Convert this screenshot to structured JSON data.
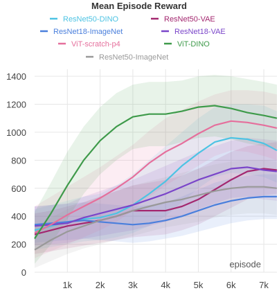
{
  "chart_data": {
    "type": "line",
    "title": "Mean Episode Reward",
    "xlabel": "episode",
    "ylabel": "",
    "xlim": [
      0,
      7400
    ],
    "ylim": [
      0,
      1450
    ],
    "x_ticks": [
      1000,
      2000,
      3000,
      4000,
      5000,
      6000,
      7000
    ],
    "x_tick_labels": [
      "1k",
      "2k",
      "3k",
      "4k",
      "5k",
      "6k",
      "7k"
    ],
    "y_ticks": [
      0,
      200,
      400,
      600,
      800,
      1000,
      1200,
      1400
    ],
    "y_tick_labels": [
      "0",
      "200",
      "400",
      "600",
      "800",
      "1000",
      "1200",
      "1400"
    ],
    "grid": true,
    "legend_position": "top",
    "x": [
      0,
      500,
      1000,
      1500,
      2000,
      2500,
      3000,
      3500,
      4000,
      4500,
      5000,
      5500,
      6000,
      6500,
      7000,
      7400
    ],
    "series": [
      {
        "name": "ResNet50-DINO",
        "color": "#4dc3e3",
        "values": [
          300,
          330,
          360,
          380,
          390,
          420,
          480,
          560,
          650,
          760,
          850,
          930,
          960,
          950,
          920,
          870
        ],
        "upper": [
          450,
          480,
          510,
          540,
          560,
          620,
          700,
          800,
          900,
          1000,
          1100,
          1180,
          1200,
          1200,
          1190,
          1150
        ],
        "lower": [
          160,
          180,
          200,
          220,
          230,
          250,
          280,
          330,
          400,
          500,
          600,
          680,
          710,
          700,
          680,
          640
        ]
      },
      {
        "name": "ResNet50-VAE",
        "color": "#a3276f",
        "values": [
          270,
          300,
          330,
          350,
          370,
          400,
          440,
          440,
          440,
          470,
          520,
          590,
          660,
          720,
          740,
          730
        ],
        "upper": [
          420,
          440,
          470,
          500,
          540,
          580,
          620,
          640,
          660,
          690,
          740,
          800,
          860,
          900,
          920,
          930
        ],
        "lower": [
          130,
          150,
          170,
          190,
          210,
          230,
          250,
          260,
          270,
          300,
          340,
          400,
          460,
          520,
          550,
          560
        ]
      },
      {
        "name": "ResNet18-ImageNet",
        "color": "#4a7fdc",
        "values": [
          340,
          350,
          360,
          370,
          360,
          350,
          340,
          350,
          370,
          400,
          440,
          480,
          510,
          530,
          540,
          540
        ],
        "upper": [
          470,
          480,
          490,
          500,
          490,
          480,
          470,
          480,
          500,
          540,
          590,
          640,
          670,
          690,
          700,
          700
        ],
        "lower": [
          210,
          220,
          230,
          240,
          230,
          220,
          210,
          220,
          240,
          260,
          290,
          320,
          350,
          370,
          380,
          380
        ]
      },
      {
        "name": "ResNet18-VAE",
        "color": "#7a45c9",
        "values": [
          330,
          340,
          350,
          390,
          420,
          450,
          480,
          520,
          560,
          610,
          660,
          700,
          740,
          750,
          730,
          720
        ],
        "upper": [
          470,
          480,
          490,
          540,
          580,
          620,
          660,
          710,
          760,
          810,
          860,
          900,
          940,
          960,
          950,
          940
        ],
        "lower": [
          190,
          200,
          210,
          240,
          260,
          280,
          300,
          330,
          360,
          400,
          450,
          490,
          530,
          540,
          520,
          510
        ]
      },
      {
        "name": "ViT-scratch-p4",
        "color": "#e56f9c",
        "values": [
          280,
          340,
          410,
          470,
          530,
          600,
          680,
          780,
          860,
          920,
          990,
          1050,
          1080,
          1070,
          1050,
          1030
        ],
        "upper": [
          470,
          540,
          610,
          680,
          750,
          830,
          910,
          1010,
          1100,
          1160,
          1220,
          1270,
          1300,
          1300,
          1290,
          1270
        ],
        "lower": [
          100,
          150,
          200,
          250,
          300,
          360,
          440,
          540,
          620,
          690,
          760,
          830,
          870,
          860,
          830,
          800
        ]
      },
      {
        "name": "ViT-DINO",
        "color": "#3e9a4a",
        "values": [
          240,
          420,
          620,
          800,
          940,
          1040,
          1110,
          1130,
          1130,
          1150,
          1180,
          1190,
          1170,
          1140,
          1120,
          1100
        ],
        "upper": [
          430,
          640,
          860,
          1040,
          1180,
          1280,
          1340,
          1360,
          1360,
          1370,
          1400,
          1410,
          1400,
          1380,
          1360,
          1340
        ],
        "lower": [
          60,
          200,
          380,
          560,
          700,
          800,
          880,
          900,
          900,
          930,
          960,
          970,
          950,
          920,
          900,
          880
        ]
      },
      {
        "name": "ResNet50-ImageNet",
        "color": "#999999",
        "values": [
          160,
          230,
          290,
          330,
          370,
          400,
          440,
          470,
          500,
          520,
          550,
          580,
          600,
          610,
          610,
          600
        ],
        "upper": [
          320,
          390,
          450,
          500,
          540,
          580,
          620,
          650,
          680,
          710,
          740,
          770,
          790,
          800,
          800,
          790
        ],
        "lower": [
          30,
          80,
          130,
          170,
          200,
          230,
          260,
          290,
          320,
          340,
          360,
          390,
          410,
          420,
          420,
          410
        ]
      }
    ]
  }
}
